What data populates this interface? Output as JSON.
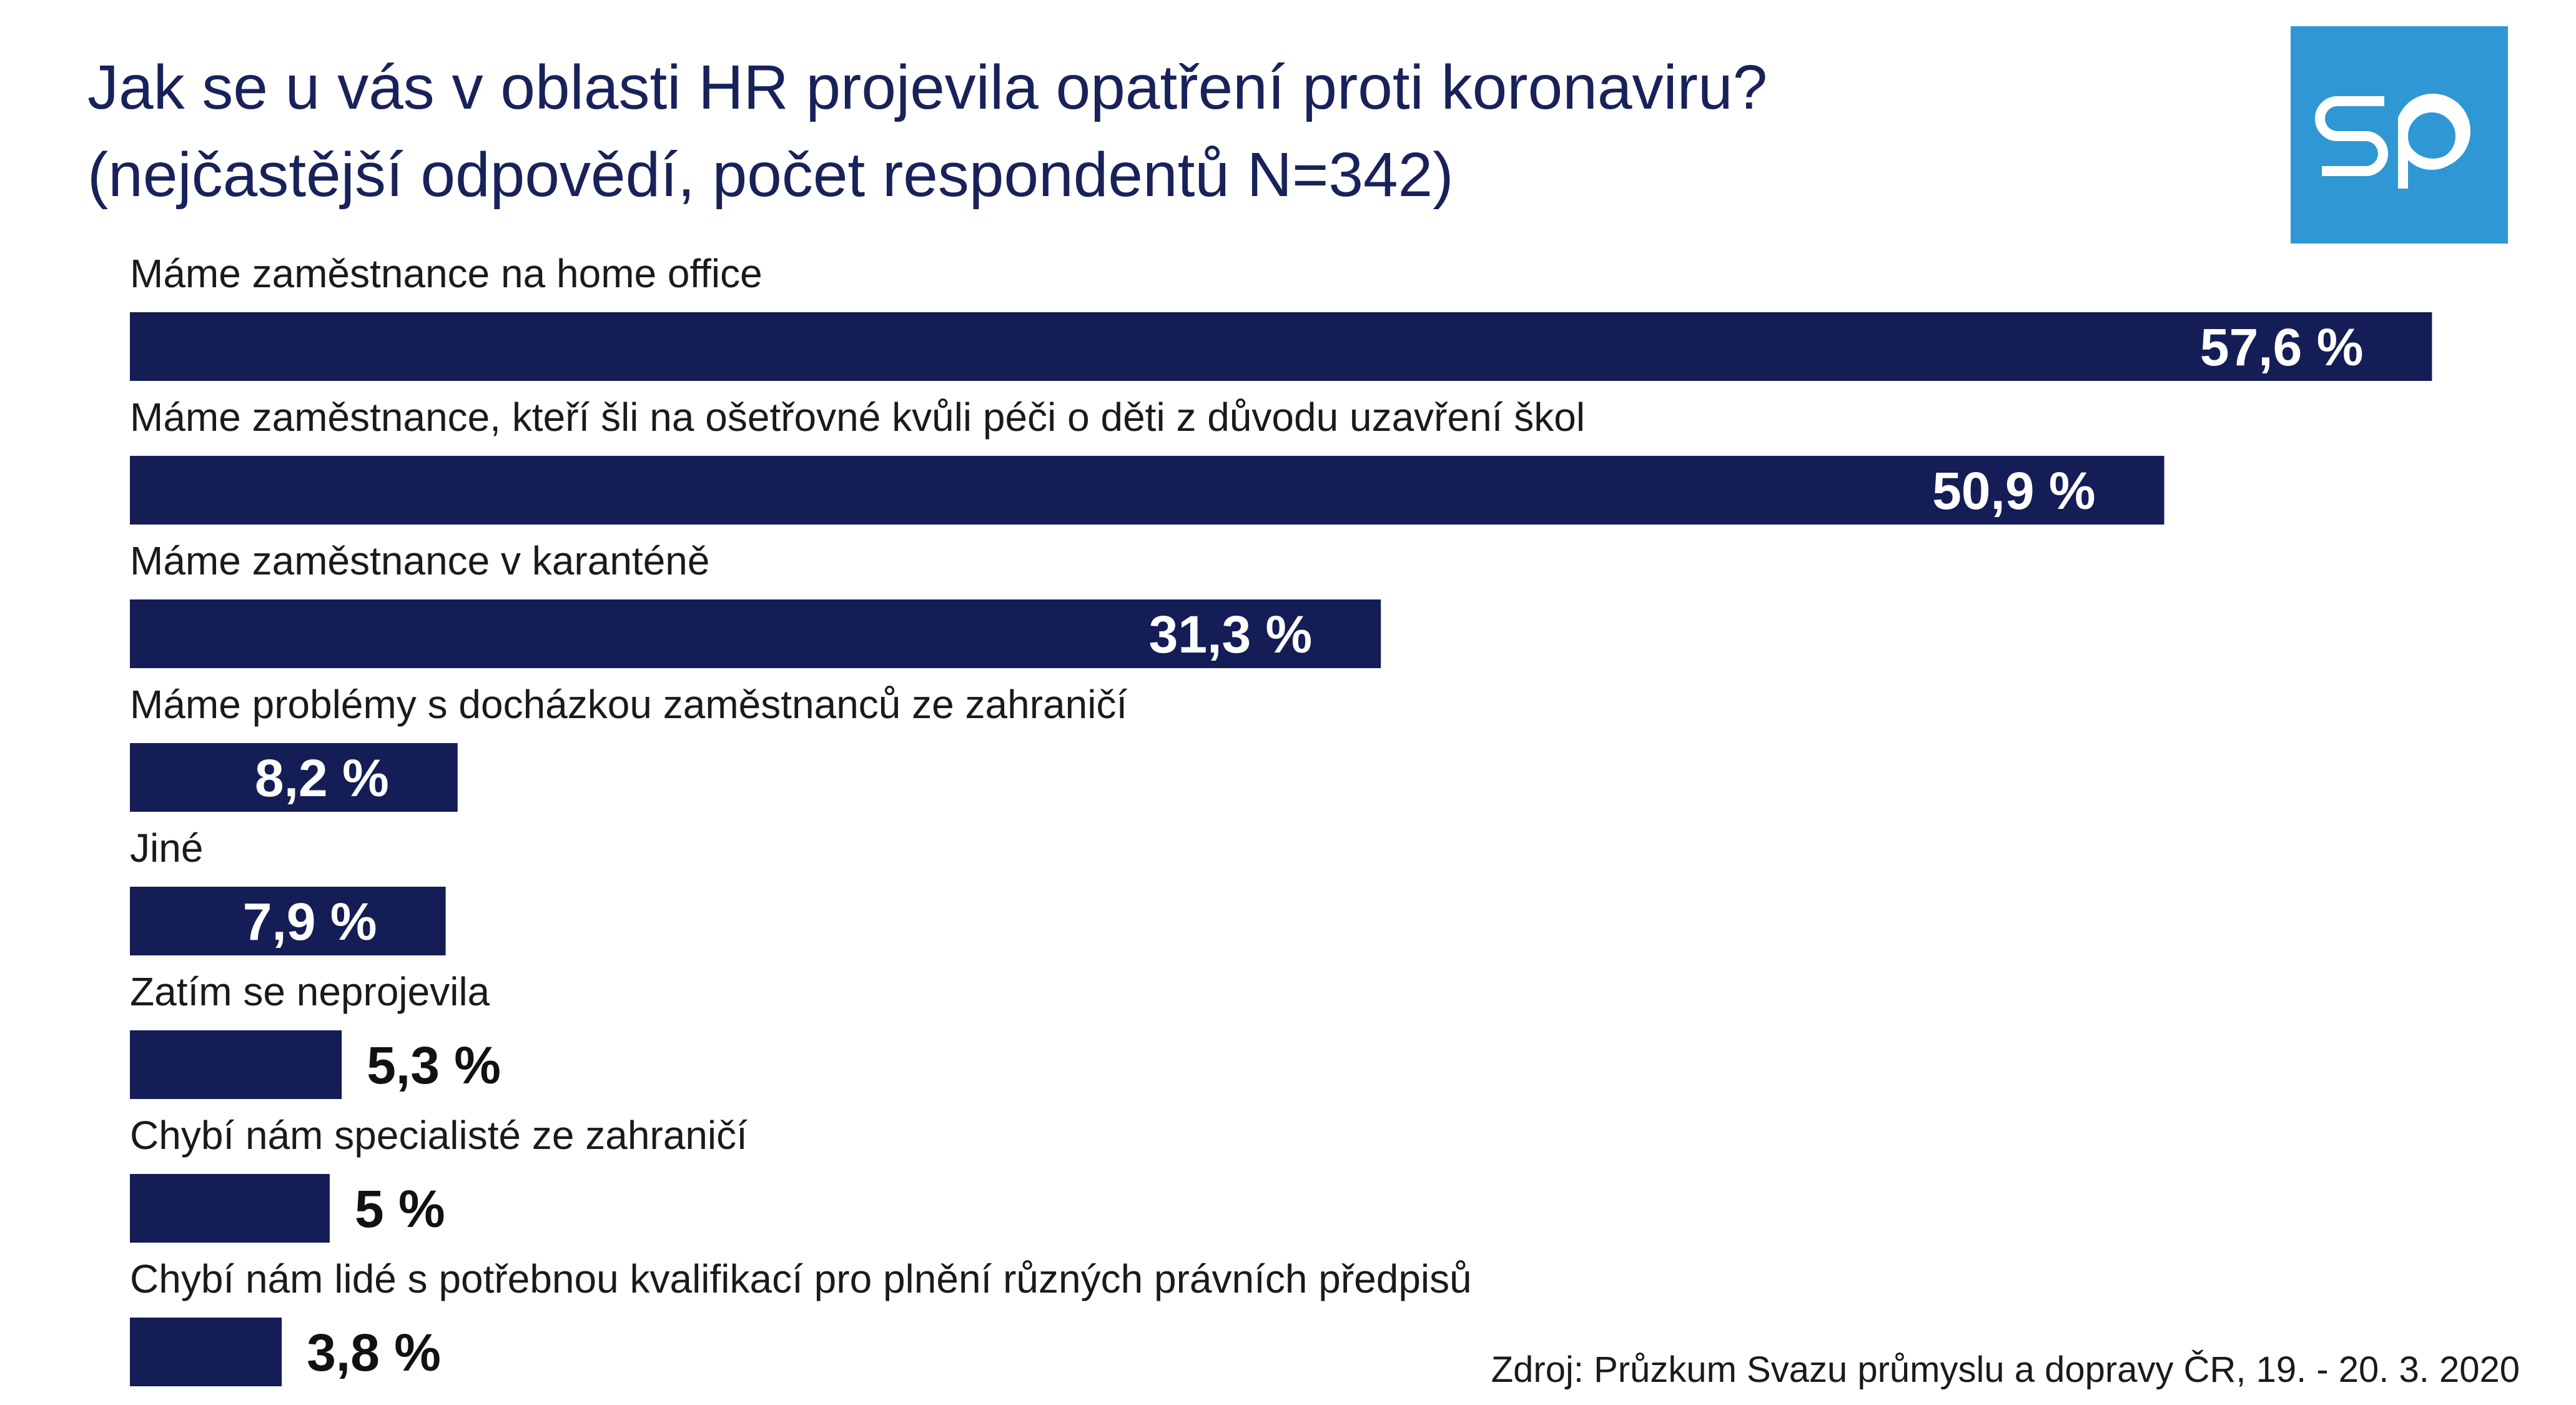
{
  "title_line1": "Jak se u vás v oblasti HR projevila opatření proti koronaviru?",
  "title_line2": "(nejčastější odpovědí, počet respondentů N=342)",
  "logo_text": "sp",
  "source": "Zdroj: Průzkum Svazu průmyslu a dopravy ČR, 19. - 20. 3. 2020",
  "colors": {
    "bar": "#141d56",
    "title": "#18225a",
    "logo_bg": "#2f97d4"
  },
  "chart_data": {
    "type": "bar",
    "orientation": "horizontal",
    "categories": [
      "Máme zaměstnance na home office",
      "Máme zaměstnance, kteří šli na ošetřovné kvůli péči o děti z důvodu uzavření škol",
      "Máme zaměstnance v karanténě",
      "Máme problémy s docházkou zaměstnanců ze zahraničí",
      "Jiné",
      "Zatím se neprojevila",
      "Chybí nám specialisté ze zahraničí",
      "Chybí nám lidé s potřebnou kvalifikací pro plnění různých právních předpisů"
    ],
    "values": [
      57.6,
      50.9,
      31.3,
      8.2,
      7.9,
      5.3,
      5,
      3.8
    ],
    "value_labels": [
      "57,6 %",
      "50,9 %",
      "31,3 %",
      "8,2 %",
      "7,9 %",
      "5,3 %",
      "5 %",
      "3,8 %"
    ],
    "grid": false,
    "legend": "none"
  }
}
